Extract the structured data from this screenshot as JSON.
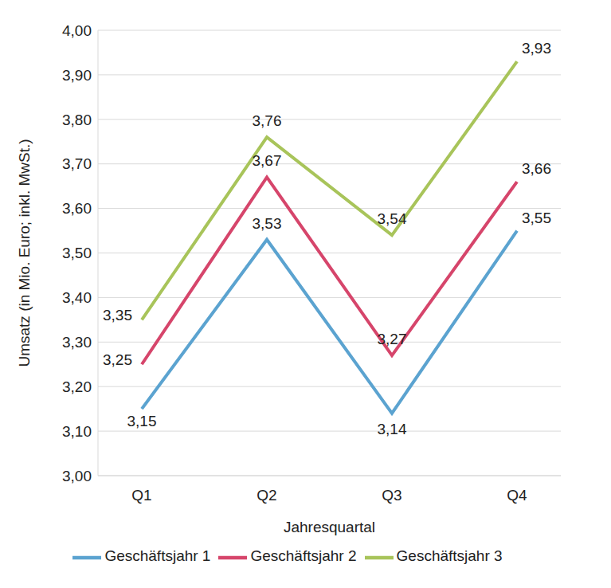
{
  "chart_data": {
    "type": "line",
    "categories": [
      "Q1",
      "Q2",
      "Q3",
      "Q4"
    ],
    "x_label": "Jahresquartal",
    "y_label": "Umsatz (in Mio. Euro; inkl. MwSt.)",
    "ylim": [
      3,
      4
    ],
    "yticks": [
      {
        "value": 3,
        "label": "3,00"
      },
      {
        "value": 3.1,
        "label": "3,10"
      },
      {
        "value": 3.2,
        "label": "3,20"
      },
      {
        "value": 3.3,
        "label": "3,30"
      },
      {
        "value": 3.4,
        "label": "3,40"
      },
      {
        "value": 3.5,
        "label": "3,50"
      },
      {
        "value": 3.6,
        "label": "3,60"
      },
      {
        "value": 3.7,
        "label": "3,70"
      },
      {
        "value": 3.8,
        "label": "3,80"
      },
      {
        "value": 3.9,
        "label": "3,90"
      },
      {
        "value": 4,
        "label": "4,00"
      }
    ],
    "grid": true,
    "legend": "bottom",
    "data_labels": true,
    "series": [
      {
        "name": "Geschäftsjahr 1",
        "color": "#5ba3d0",
        "values": [
          3.15,
          3.53,
          3.14,
          3.55
        ],
        "value_labels": [
          "3,15",
          "3,53",
          "3,14",
          "3,55"
        ]
      },
      {
        "name": "Geschäftsjahr 2",
        "color": "#d6456b",
        "values": [
          3.25,
          3.67,
          3.27,
          3.66
        ],
        "value_labels": [
          "3,25",
          "3,67",
          "3,27",
          "3,66"
        ]
      },
      {
        "name": "Geschäftsjahr 3",
        "color": "#a8c45a",
        "values": [
          3.35,
          3.76,
          3.54,
          3.93
        ],
        "value_labels": [
          "3,35",
          "3,76",
          "3,54",
          "3,93"
        ]
      }
    ]
  }
}
